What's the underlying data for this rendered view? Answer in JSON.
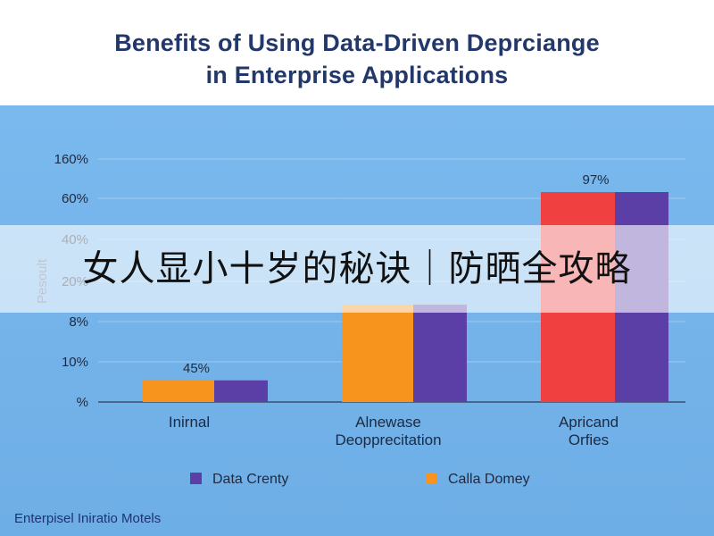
{
  "title_line1": "Benefits of Using Data-Driven Deprciange",
  "title_line2": "in Enterprise Applications",
  "banner_text": "女人显小十岁的秘诀｜防晒全攻略",
  "footer_text": "Enterpisel Iniratio Motels",
  "chart_data": {
    "type": "bar",
    "title": "Benefits of Using Data-Driven Deprciange in Enterprise Applications",
    "ylabel": "Pesoult",
    "y_tick_labels": [
      "%",
      "10%",
      "8%",
      "20%",
      "40%",
      "60%",
      "160%"
    ],
    "categories": [
      "Inirnal",
      "Alnewase Deopprecitation",
      "Apricand Orfies"
    ],
    "series": [
      {
        "name": "Calla Domey",
        "color": "#f7941d",
        "values": [
          10,
          45,
          97
        ]
      },
      {
        "name": "Data Crenty",
        "color": "#5c3fa6",
        "values": [
          10,
          45,
          97
        ]
      }
    ],
    "third_bar_left_color": "#f04040",
    "data_labels": [
      "45%",
      "",
      "97%"
    ],
    "legend": [
      {
        "name": "Data Crenty",
        "color": "#5c3fa6"
      },
      {
        "name": "Calla Domey",
        "color": "#f7941d"
      }
    ],
    "legend_position": "bottom",
    "grid": true
  }
}
